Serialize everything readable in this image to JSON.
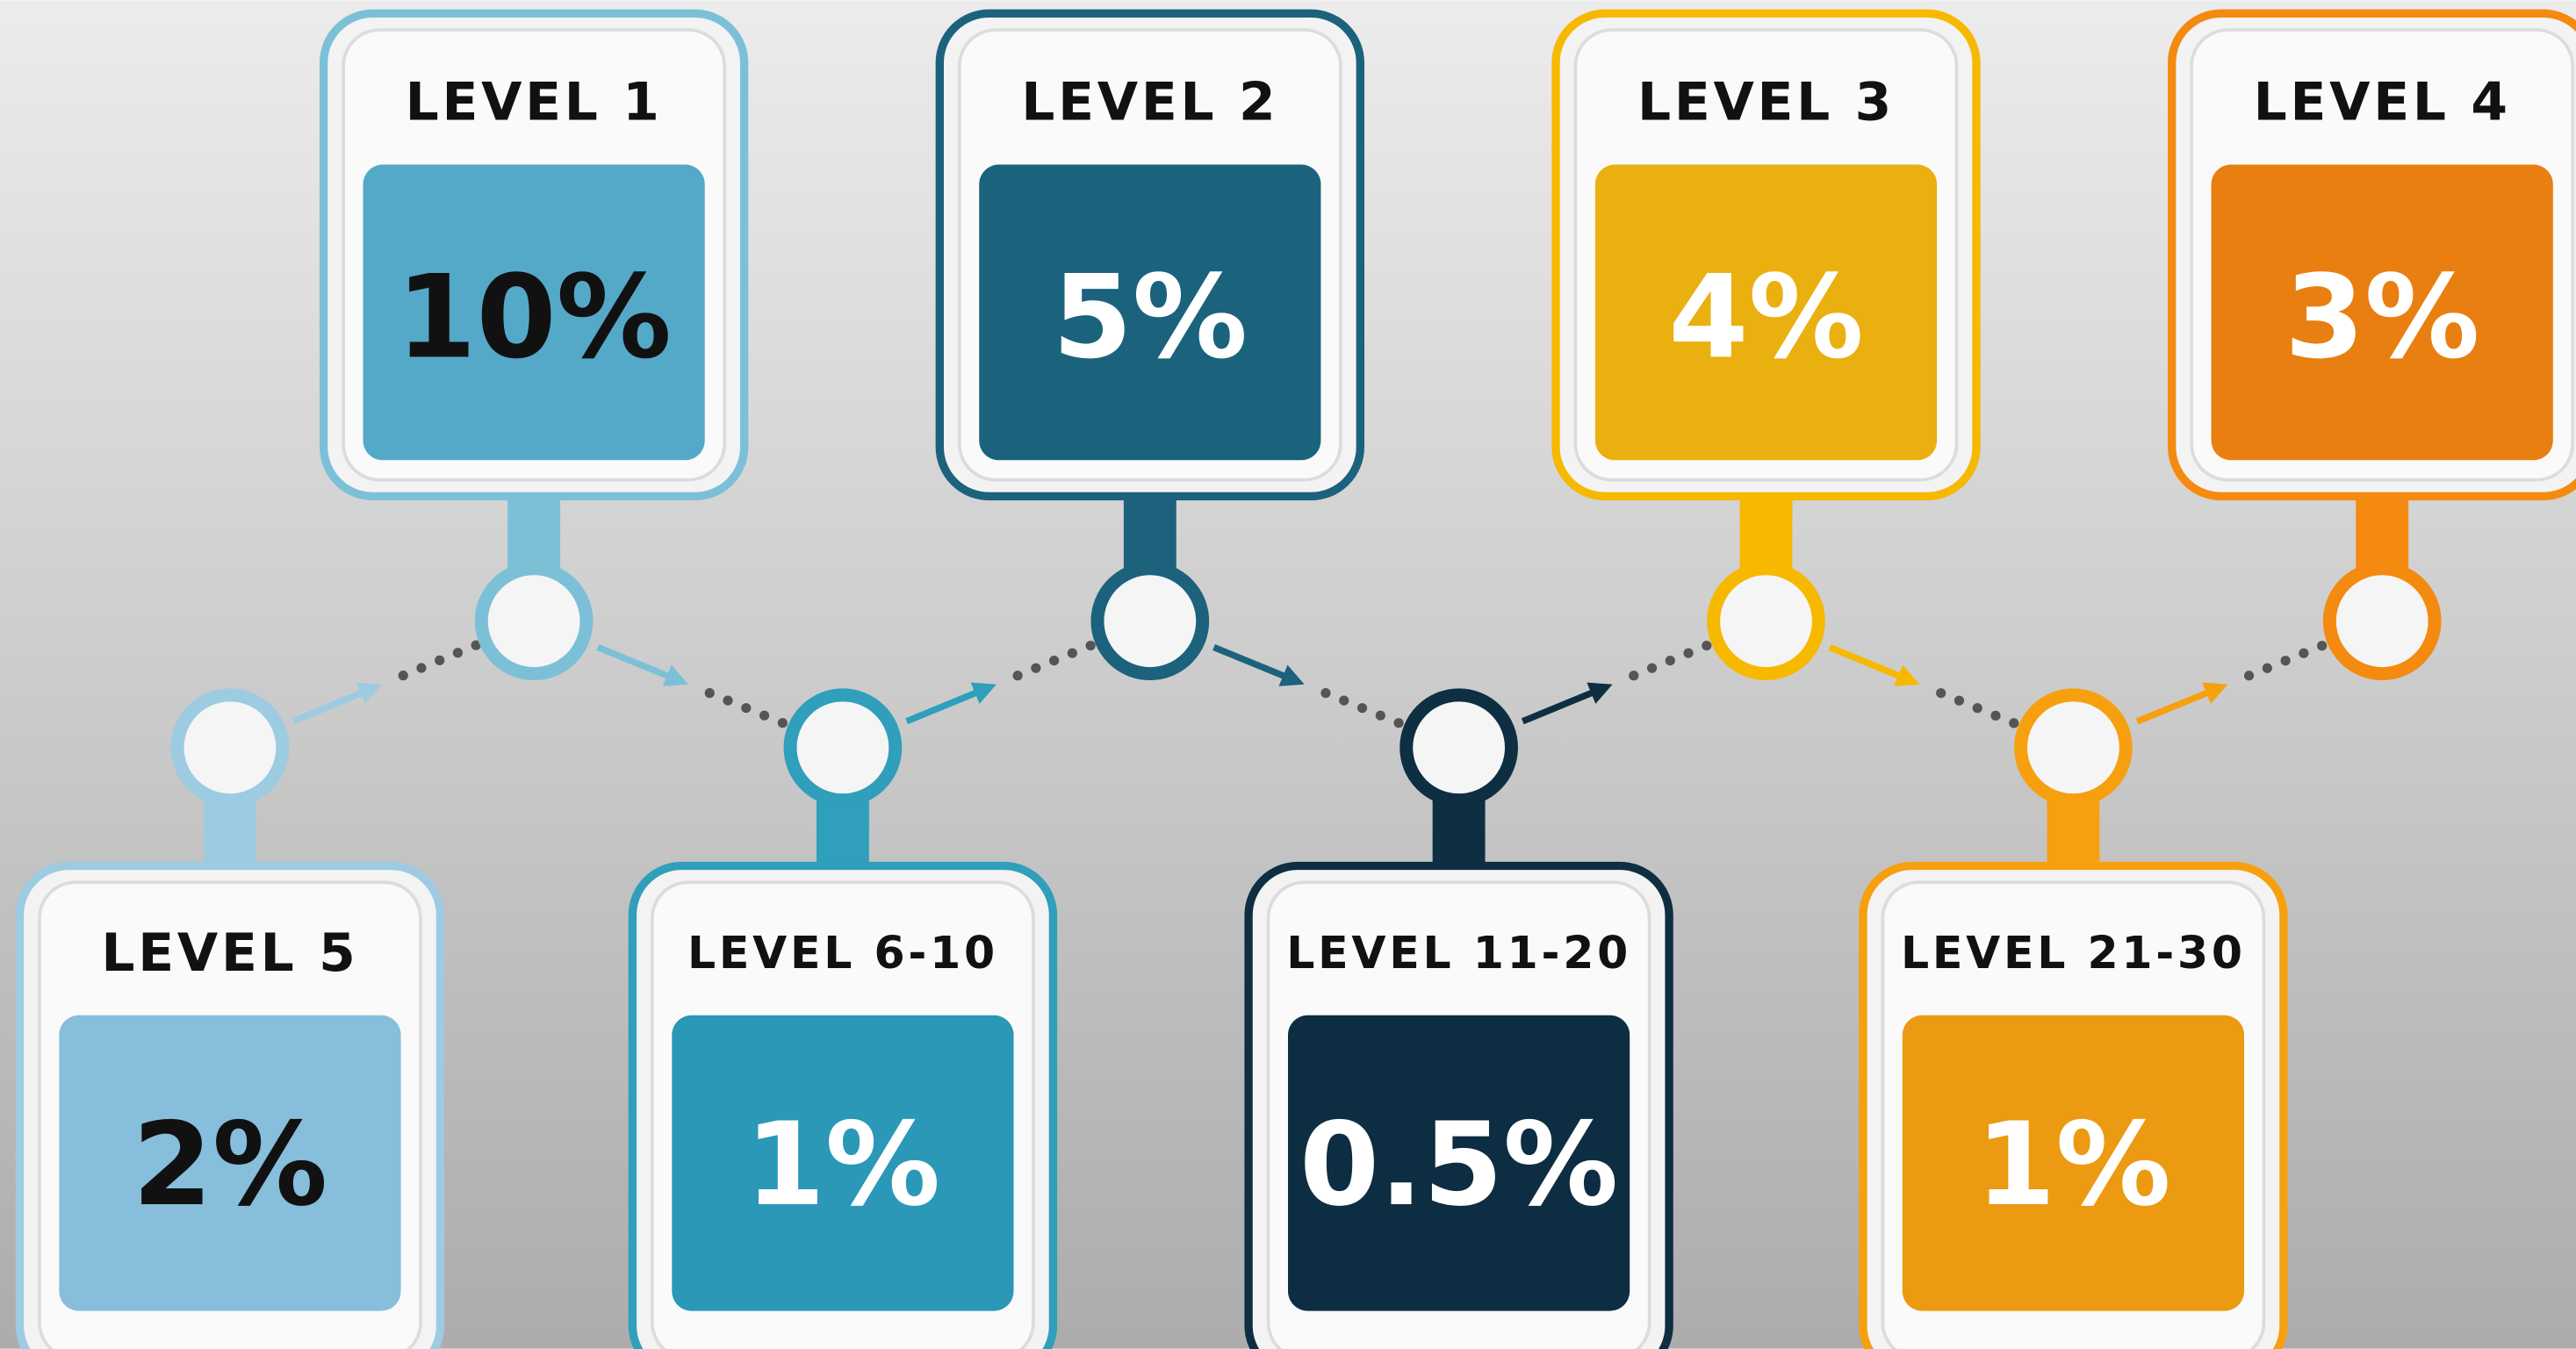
{
  "levels": [
    {
      "label": "LEVEL 1",
      "value": "10%"
    },
    {
      "label": "LEVEL 2",
      "value": "5%"
    },
    {
      "label": "LEVEL 3",
      "value": "4%"
    },
    {
      "label": "LEVEL 4",
      "value": "3%"
    },
    {
      "label": "LEVEL 5",
      "value": "2%"
    },
    {
      "label": "LEVEL 6-10",
      "value": "1%"
    },
    {
      "label": "LEVEL 11-20",
      "value": "0.5%"
    },
    {
      "label": "LEVEL 21-30",
      "value": "1%"
    }
  ]
}
